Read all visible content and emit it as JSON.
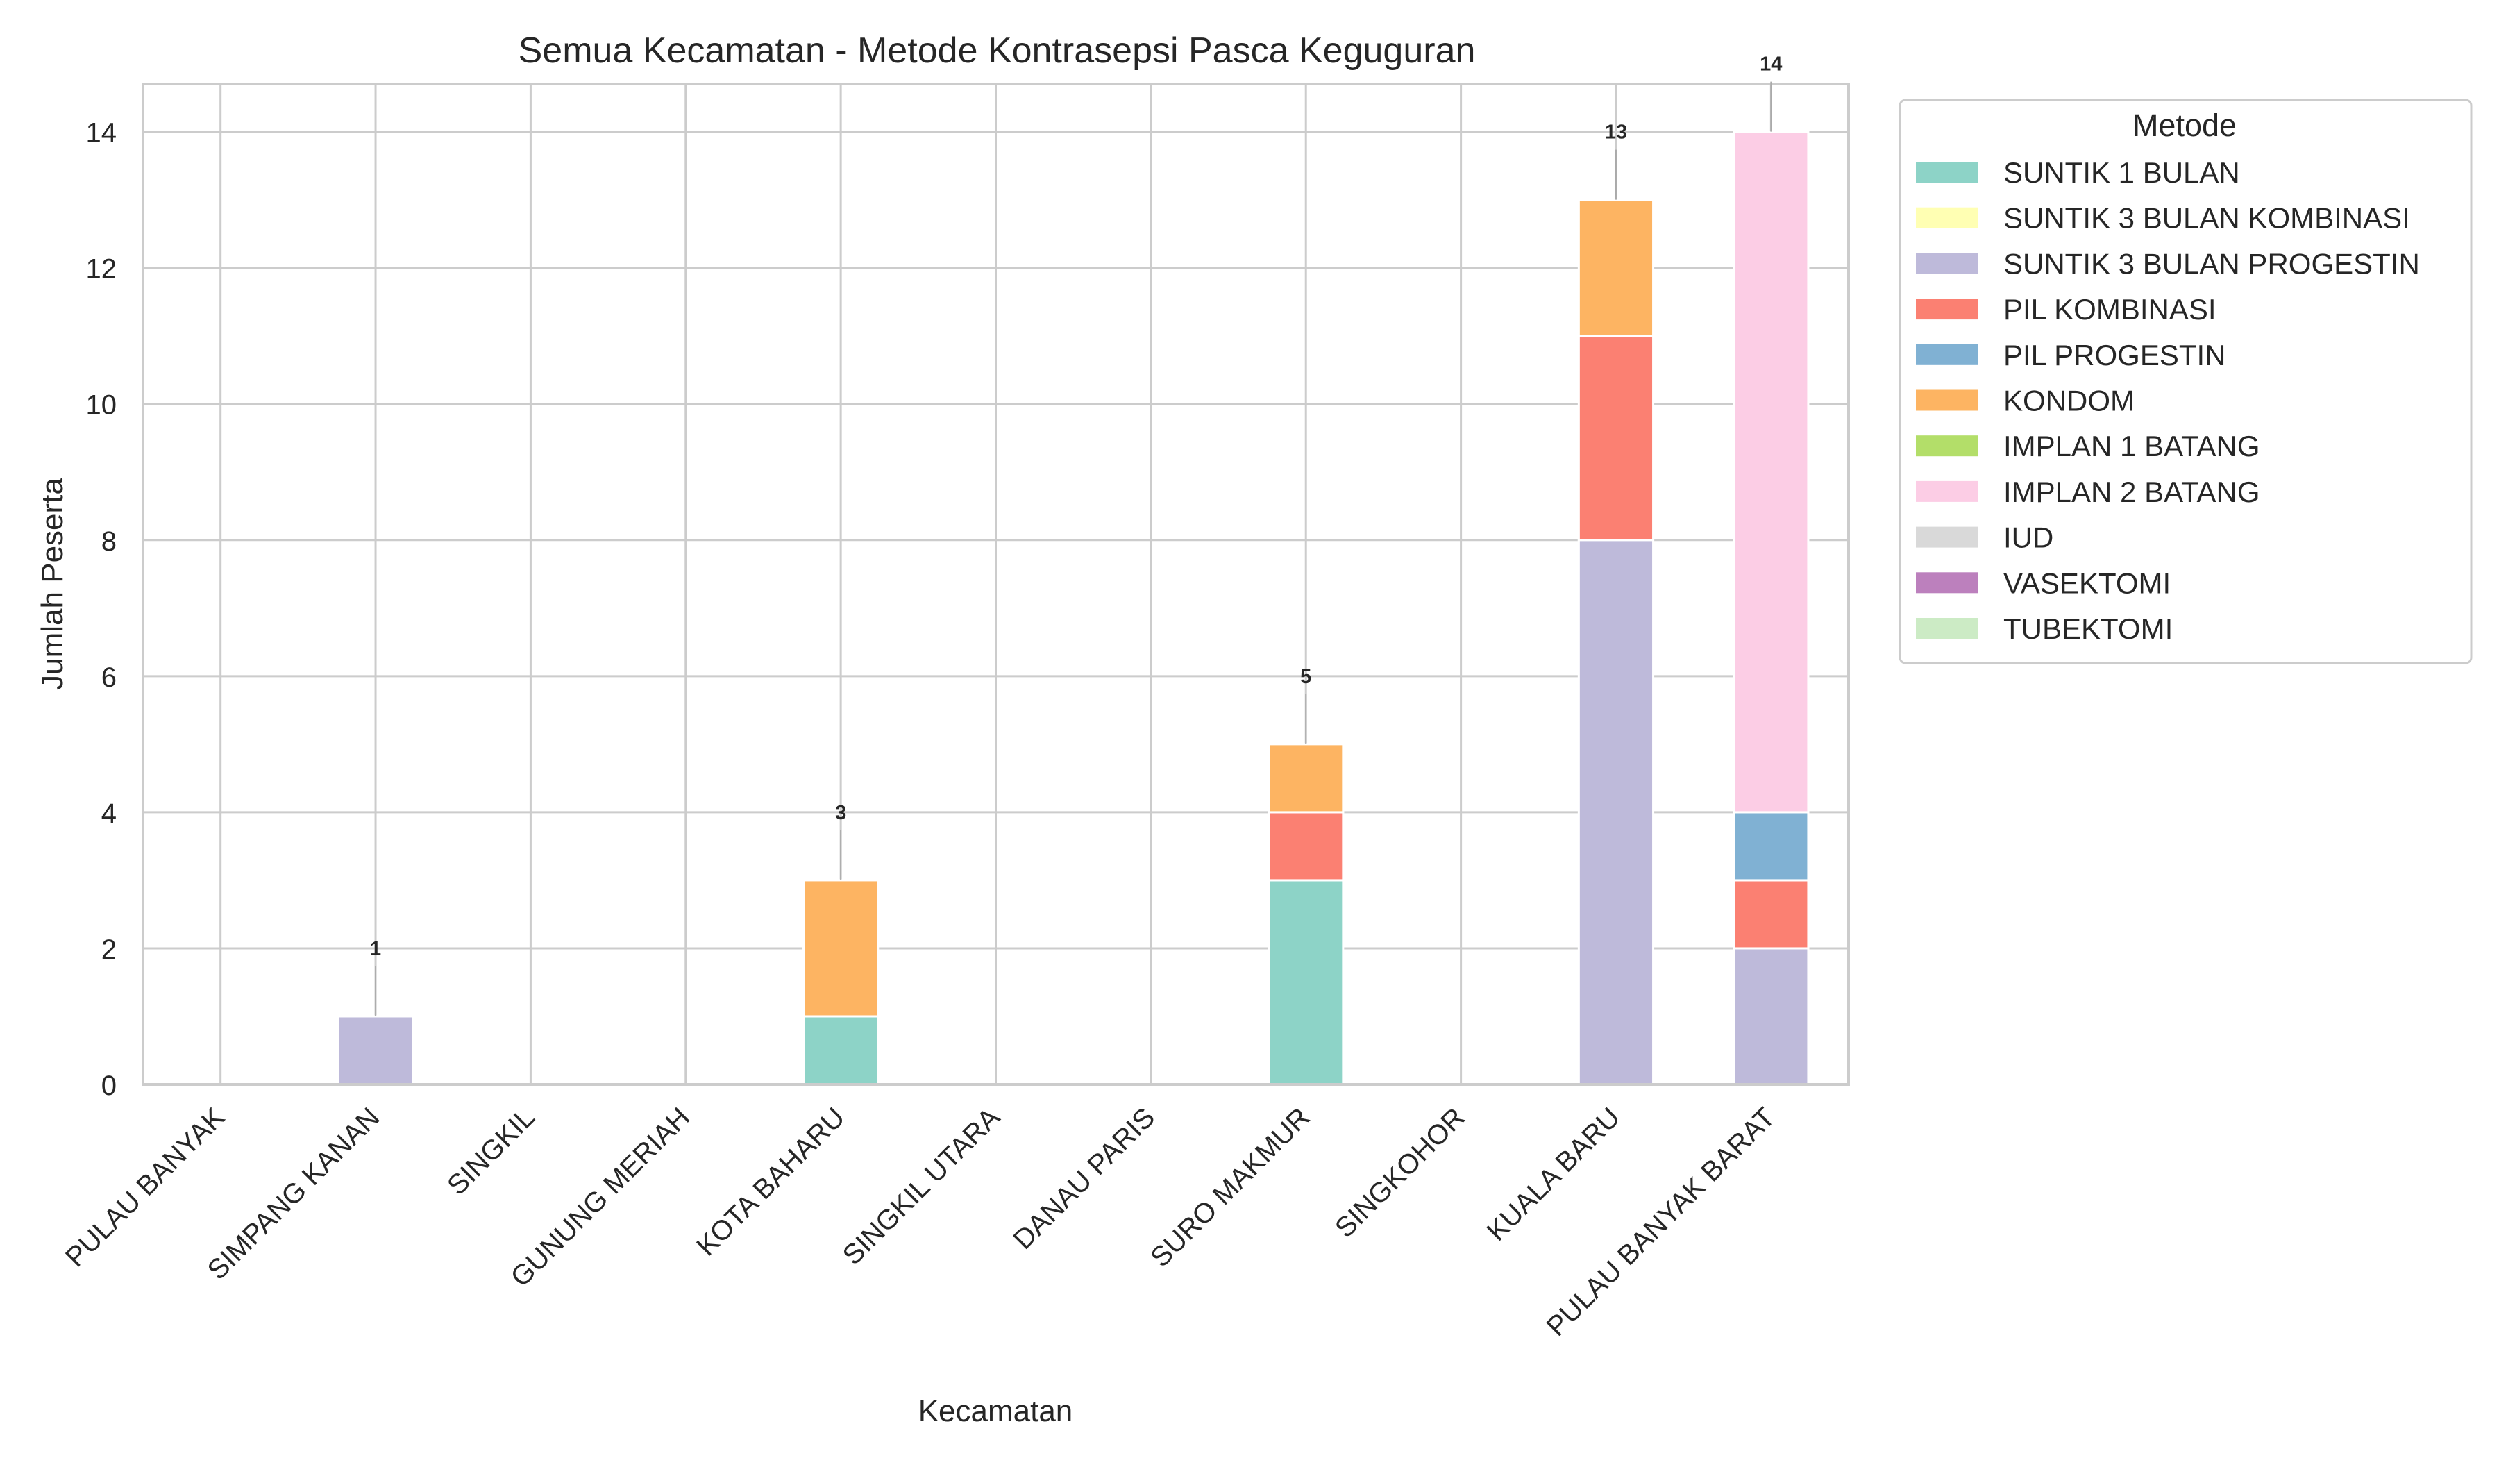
{
  "chart_data": {
    "type": "bar",
    "stacked": true,
    "title": "Semua Kecamatan - Metode Kontrasepsi Pasca Keguguran",
    "xlabel": "Kecamatan",
    "ylabel": "Jumlah Peserta",
    "ylim": [
      0,
      14.7
    ],
    "yticks": [
      0,
      2,
      4,
      6,
      8,
      10,
      12,
      14
    ],
    "grid": true,
    "legend_title": "Metode",
    "legend_position": "outside-right-top",
    "categories": [
      "PULAU BANYAK",
      "SIMPANG KANAN",
      "SINGKIL",
      "GUNUNG MERIAH",
      "KOTA BAHARU",
      "SINGKIL UTARA",
      "DANAU PARIS",
      "SURO MAKMUR",
      "SINGKOHOR",
      "KUALA BARU",
      "PULAU BANYAK BARAT"
    ],
    "totals": [
      null,
      1,
      null,
      null,
      3,
      null,
      null,
      5,
      null,
      13,
      14
    ],
    "series": [
      {
        "name": "SUNTIK 1 BULAN",
        "color": "#8dd3c7",
        "values": [
          0,
          0,
          0,
          0,
          1,
          0,
          0,
          3,
          0,
          0,
          0
        ]
      },
      {
        "name": "SUNTIK 3 BULAN KOMBINASI",
        "color": "#ffffb3",
        "values": [
          0,
          0,
          0,
          0,
          0,
          0,
          0,
          0,
          0,
          0,
          0
        ]
      },
      {
        "name": "SUNTIK 3 BULAN PROGESTIN",
        "color": "#bebada",
        "values": [
          0,
          1,
          0,
          0,
          0,
          0,
          0,
          0,
          0,
          8,
          2
        ]
      },
      {
        "name": "PIL KOMBINASI",
        "color": "#fb8072",
        "values": [
          0,
          0,
          0,
          0,
          0,
          0,
          0,
          1,
          0,
          3,
          1
        ]
      },
      {
        "name": "PIL PROGESTIN",
        "color": "#80b1d3",
        "values": [
          0,
          0,
          0,
          0,
          0,
          0,
          0,
          0,
          0,
          0,
          1
        ]
      },
      {
        "name": "KONDOM",
        "color": "#fdb462",
        "values": [
          0,
          0,
          0,
          0,
          2,
          0,
          0,
          1,
          0,
          2,
          0
        ]
      },
      {
        "name": "IMPLAN 1 BATANG",
        "color": "#b3de69",
        "values": [
          0,
          0,
          0,
          0,
          0,
          0,
          0,
          0,
          0,
          0,
          0
        ]
      },
      {
        "name": "IMPLAN 2 BATANG",
        "color": "#fccde5",
        "values": [
          0,
          0,
          0,
          0,
          0,
          0,
          0,
          0,
          0,
          0,
          10
        ]
      },
      {
        "name": "IUD",
        "color": "#d9d9d9",
        "values": [
          0,
          0,
          0,
          0,
          0,
          0,
          0,
          0,
          0,
          0,
          0
        ]
      },
      {
        "name": "VASEKTOMI",
        "color": "#bc80bd",
        "values": [
          0,
          0,
          0,
          0,
          0,
          0,
          0,
          0,
          0,
          0,
          0
        ]
      },
      {
        "name": "TUBEKTOMI",
        "color": "#ccebc5",
        "values": [
          0,
          0,
          0,
          0,
          0,
          0,
          0,
          0,
          0,
          0,
          0
        ]
      }
    ]
  }
}
